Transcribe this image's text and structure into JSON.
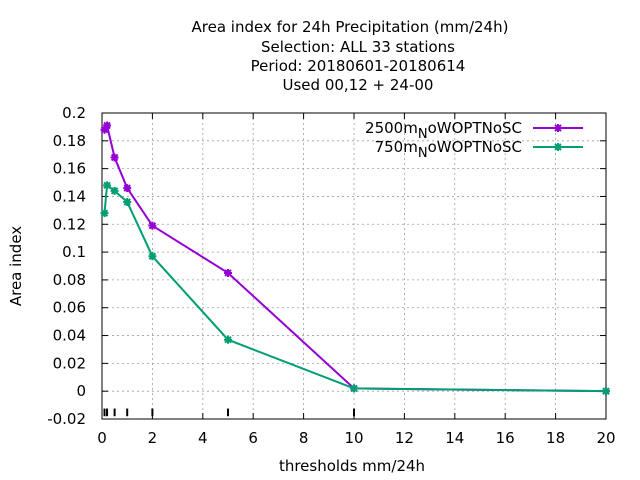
{
  "chart_data": {
    "type": "line",
    "title_lines": [
      "Area index  for 24h Precipitation (mm/24h)",
      "Selection: ALL     33 stations",
      "Period: 20180601-20180614",
      "Used  00,12  + 24-00"
    ],
    "xlabel": "thresholds mm/24h",
    "ylabel": "Area index",
    "xlim": [
      0,
      20
    ],
    "ylim": [
      -0.02,
      0.2
    ],
    "xticks": [
      0,
      2,
      4,
      6,
      8,
      10,
      12,
      14,
      16,
      18,
      20
    ],
    "xtick_labels": [
      "0",
      "2",
      "4",
      "6",
      "8",
      "10",
      "12",
      "14",
      "16",
      "18",
      "20"
    ],
    "yticks": [
      -0.02,
      0,
      0.02,
      0.04,
      0.06,
      0.08,
      0.1,
      0.12,
      0.14,
      0.16,
      0.18,
      0.2
    ],
    "ytick_labels": [
      "-0.02",
      "0",
      "0.02",
      "0.04",
      "0.06",
      "0.08",
      "0.1",
      "0.12",
      "0.14",
      "0.16",
      "0.18",
      "0.2"
    ],
    "grid": true,
    "legend_position": "top-right",
    "threshold_marks": [
      0.1,
      0.2,
      0.5,
      1,
      2,
      5,
      10
    ],
    "series": [
      {
        "name_main": "2500m",
        "name_sub": "N",
        "name_rest": "oWOPTNoSC",
        "color": "#9400d3",
        "x": [
          0.1,
          0.2,
          0.5,
          1,
          2,
          5,
          10,
          20
        ],
        "y": [
          0.188,
          0.191,
          0.168,
          0.146,
          0.119,
          0.085,
          0.002,
          0.0
        ]
      },
      {
        "name_main": "750m",
        "name_sub": "N",
        "name_rest": "oWOPTNoSC",
        "color": "#009e73",
        "x": [
          0.1,
          0.2,
          0.5,
          1,
          2,
          5,
          10,
          20
        ],
        "y": [
          0.128,
          0.148,
          0.144,
          0.136,
          0.097,
          0.037,
          0.002,
          0.0
        ]
      }
    ]
  }
}
